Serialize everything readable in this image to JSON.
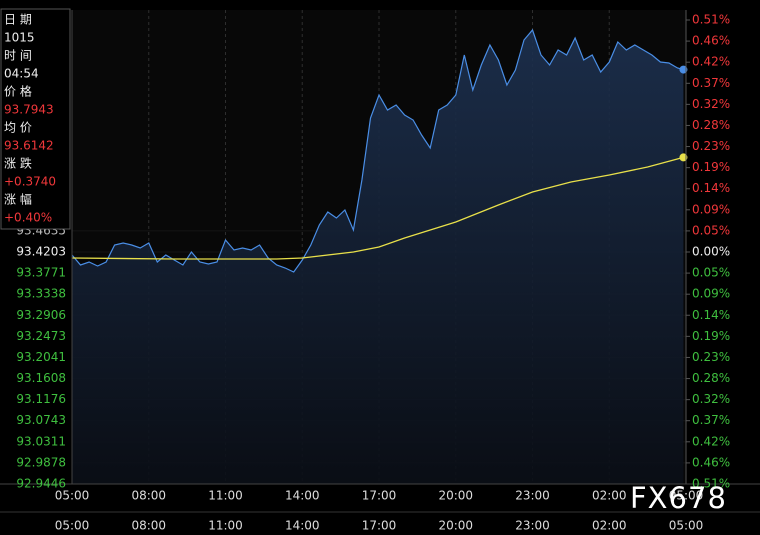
{
  "chart_data": {
    "type": "line",
    "x": [
      0,
      20,
      40,
      60,
      80,
      100,
      120,
      140,
      160,
      180,
      200,
      220,
      240,
      260,
      280,
      300,
      320,
      340,
      360,
      380,
      400,
      420,
      440,
      460,
      480,
      500,
      520,
      540,
      560,
      580,
      600,
      620,
      640,
      660,
      680,
      700,
      720,
      740,
      760,
      780,
      800,
      820,
      840,
      860,
      880,
      900,
      920,
      940,
      960,
      980,
      1000,
      1020,
      1040,
      1060,
      1080,
      1100,
      1120,
      1140,
      1160,
      1180,
      1200,
      1220,
      1240,
      1260,
      1280,
      1300,
      1320,
      1340,
      1360,
      1380,
      1400,
      1420,
      1434
    ],
    "xlim": [
      0,
      1440
    ],
    "xticks": [
      {
        "value": 0,
        "label": "05:00"
      },
      {
        "value": 180,
        "label": "08:00"
      },
      {
        "value": 360,
        "label": "11:00"
      },
      {
        "value": 540,
        "label": "14:00"
      },
      {
        "value": 720,
        "label": "17:00"
      },
      {
        "value": 900,
        "label": "20:00"
      },
      {
        "value": 1080,
        "label": "23:00"
      },
      {
        "value": 1260,
        "label": "02:00"
      },
      {
        "value": 1440,
        "label": "05:00"
      }
    ],
    "ylim": [
      92.9446,
      93.896
    ],
    "yticks": [
      93.4635,
      93.4203,
      93.3771,
      93.3338,
      93.2906,
      93.2473,
      93.2041,
      93.1608,
      93.1176,
      93.0743,
      93.0311,
      92.9878,
      92.9446
    ],
    "y2lim": [
      -0.5091,
      0.5091
    ],
    "y2ticks": [
      {
        "value": 0.5091,
        "label": "0.51%"
      },
      {
        "value": 0.4628,
        "label": "0.46%"
      },
      {
        "value": 0.4165,
        "label": "0.42%"
      },
      {
        "value": 0.3702,
        "label": "0.37%"
      },
      {
        "value": 0.324,
        "label": "0.32%"
      },
      {
        "value": 0.2777,
        "label": "0.28%"
      },
      {
        "value": 0.2314,
        "label": "0.23%"
      },
      {
        "value": 0.1851,
        "label": "0.19%"
      },
      {
        "value": 0.1388,
        "label": "0.14%"
      },
      {
        "value": 0.0926,
        "label": "0.09%"
      },
      {
        "value": 0.0463,
        "label": "0.05%"
      },
      {
        "value": 0,
        "label": "0.00%"
      },
      {
        "value": -0.0463,
        "label": "0.05%"
      },
      {
        "value": -0.0926,
        "label": "0.09%"
      },
      {
        "value": -0.1388,
        "label": "0.14%"
      },
      {
        "value": -0.1851,
        "label": "0.19%"
      },
      {
        "value": -0.2314,
        "label": "0.23%"
      },
      {
        "value": -0.2777,
        "label": "0.28%"
      },
      {
        "value": -0.324,
        "label": "0.32%"
      },
      {
        "value": -0.3702,
        "label": "0.37%"
      },
      {
        "value": -0.4165,
        "label": "0.42%"
      },
      {
        "value": -0.4628,
        "label": "0.46%"
      },
      {
        "value": -0.5091,
        "label": "0.51%"
      }
    ],
    "grid": true,
    "series": [
      {
        "color": "#4a8ee6",
        "values": [
          93.4141,
          93.3936,
          93.3998,
          93.3916,
          93.3998,
          93.4346,
          93.4387,
          93.4346,
          93.4285,
          93.4387,
          93.3998,
          93.4141,
          93.4039,
          93.3936,
          93.4203,
          93.3998,
          93.3957,
          93.3998,
          93.4449,
          93.4244,
          93.4285,
          93.4244,
          93.4346,
          93.408,
          93.3936,
          93.3875,
          93.3793,
          93.4039,
          93.4346,
          93.4756,
          93.5023,
          93.49,
          93.5064,
          93.4654,
          93.5679,
          93.6951,
          93.7422,
          93.7115,
          93.7217,
          93.7012,
          93.6909,
          93.6602,
          93.6335,
          93.7115,
          93.7217,
          93.7422,
          93.8242,
          93.7525,
          93.8037,
          93.8447,
          93.814,
          93.7627,
          93.7935,
          93.855,
          93.8755,
          93.8242,
          93.8037,
          93.8345,
          93.8242,
          93.8591,
          93.814,
          93.8242,
          93.7894,
          93.8099,
          93.8509,
          93.8345,
          93.8447,
          93.8345,
          93.8242,
          93.8099,
          93.8078,
          93.7976,
          93.7943
        ]
      },
      {
        "color": "#e8e04a",
        "x": [
          0,
          240,
          480,
          540,
          660,
          720,
          780,
          840,
          900,
          1000,
          1080,
          1170,
          1260,
          1350,
          1434
        ],
        "values": [
          93.408,
          93.4059,
          93.4059,
          93.408,
          93.4203,
          93.4305,
          93.449,
          93.4654,
          93.4818,
          93.5167,
          93.5433,
          93.5638,
          93.5782,
          93.5946,
          93.6142
        ]
      }
    ],
    "info": [
      {
        "label": "日 期",
        "value": "1015"
      },
      {
        "label": "时 间",
        "value": "04:54"
      },
      {
        "label": "价 格",
        "value": "93.7943"
      },
      {
        "label": "均 价",
        "value": "93.6142"
      },
      {
        "label": "涨 跌",
        "value": "+0.3740"
      },
      {
        "label": "涨 幅",
        "value": "+0.40%"
      }
    ],
    "watermark": "FX678"
  }
}
